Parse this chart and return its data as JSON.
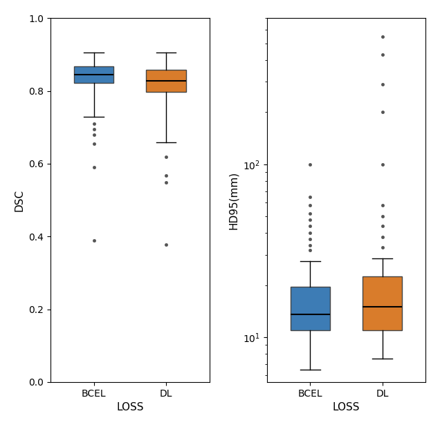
{
  "dsc_bcel": {
    "q1": 0.822,
    "median": 0.845,
    "q3": 0.868,
    "whislo": 0.73,
    "whishi": 0.905,
    "fliers": [
      0.71,
      0.695,
      0.68,
      0.655,
      0.59,
      0.39
    ]
  },
  "dsc_dl": {
    "q1": 0.798,
    "median": 0.828,
    "q3": 0.858,
    "whislo": 0.658,
    "whishi": 0.905,
    "fliers": [
      0.618,
      0.568,
      0.548,
      0.378
    ]
  },
  "hd_bcel": {
    "q1": 11.0,
    "median": 13.5,
    "q3": 19.5,
    "whislo": 6.5,
    "whishi": 27.5,
    "fliers": [
      32.0,
      34.0,
      37.0,
      40.0,
      44.0,
      48.0,
      52.0,
      58.0,
      65.0,
      100.0
    ]
  },
  "hd_dl": {
    "q1": 11.0,
    "median": 15.0,
    "q3": 22.5,
    "whislo": 7.5,
    "whishi": 28.5,
    "fliers": [
      33.0,
      38.0,
      44.0,
      50.0,
      58.0,
      100.0,
      200.0,
      290.0,
      430.0,
      550.0
    ]
  },
  "color_bcel": "#3d7cb5",
  "color_dl": "#d97c2b",
  "xlabel": "LOSS",
  "ylabel_dsc": "DSC",
  "ylabel_hd": "HD95(mm)",
  "xtick_labels": [
    "BCEL",
    "DL"
  ],
  "dsc_ylim": [
    0.0,
    1.0
  ],
  "dsc_yticks": [
    0.0,
    0.2,
    0.4,
    0.6,
    0.8,
    1.0
  ],
  "hd_ylim_log": [
    5.5,
    700
  ],
  "figsize": [
    6.36,
    6.18
  ],
  "dpi": 100
}
